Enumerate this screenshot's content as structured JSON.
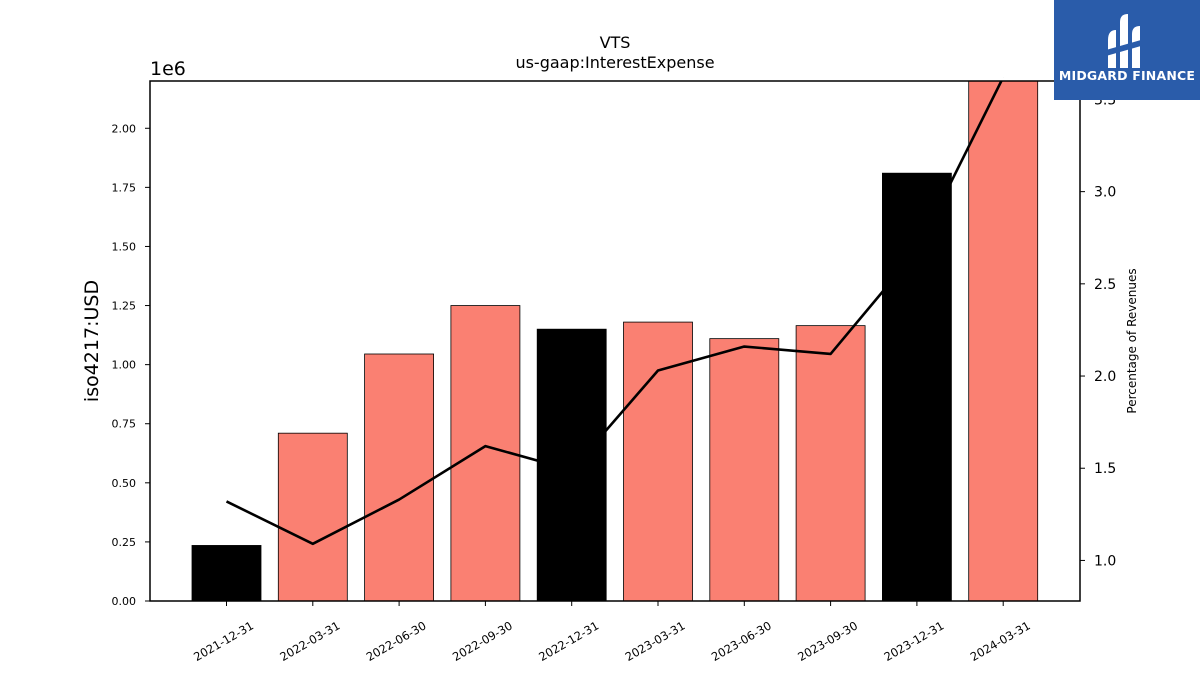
{
  "chart_data": {
    "type": "bar",
    "title": "VTS",
    "subtitle": "us-gaap:InterestExpense",
    "ylabel": "iso4217:USD",
    "y_offset_label": "1e6",
    "y2label": "Percentage of Revenues",
    "categories": [
      "2021-12-31",
      "2022-03-31",
      "2022-06-30",
      "2022-09-30",
      "2022-12-31",
      "2023-03-31",
      "2023-06-30",
      "2023-09-30",
      "2023-12-31",
      "2024-03-31"
    ],
    "values": [
      0.235,
      0.71,
      1.045,
      1.25,
      1.15,
      1.18,
      1.11,
      1.165,
      1.81,
      2.2
    ],
    "bar_colors": [
      "#000000",
      "#fa8072",
      "#fa8072",
      "#fa8072",
      "#000000",
      "#fa8072",
      "#fa8072",
      "#fa8072",
      "#000000",
      "#fa8072"
    ],
    "ylim": [
      0,
      2.2
    ],
    "yticks": [
      0.0,
      0.25,
      0.5,
      0.75,
      1.0,
      1.25,
      1.5,
      1.75,
      2.0
    ],
    "ytick_labels": [
      "0.00",
      "0.25",
      "0.50",
      "0.75",
      "1.00",
      "1.25",
      "1.50",
      "1.75",
      "2.00"
    ],
    "line": {
      "name": "Percentage of Revenues",
      "values": [
        1.32,
        1.09,
        1.33,
        1.62,
        1.49,
        2.03,
        2.16,
        2.12,
        2.68,
        3.62
      ],
      "color": "#000000"
    },
    "y2lim": [
      0.78,
      3.6
    ],
    "y2ticks": [
      1.0,
      1.5,
      2.0,
      2.5,
      3.0,
      3.5
    ],
    "y2tick_labels": [
      "1.0",
      "1.5",
      "2.0",
      "2.5",
      "3.0",
      "3.5"
    ],
    "grid": false
  },
  "logo": {
    "text": "MIDGARD FINANCE",
    "color": "#2a5caa"
  }
}
